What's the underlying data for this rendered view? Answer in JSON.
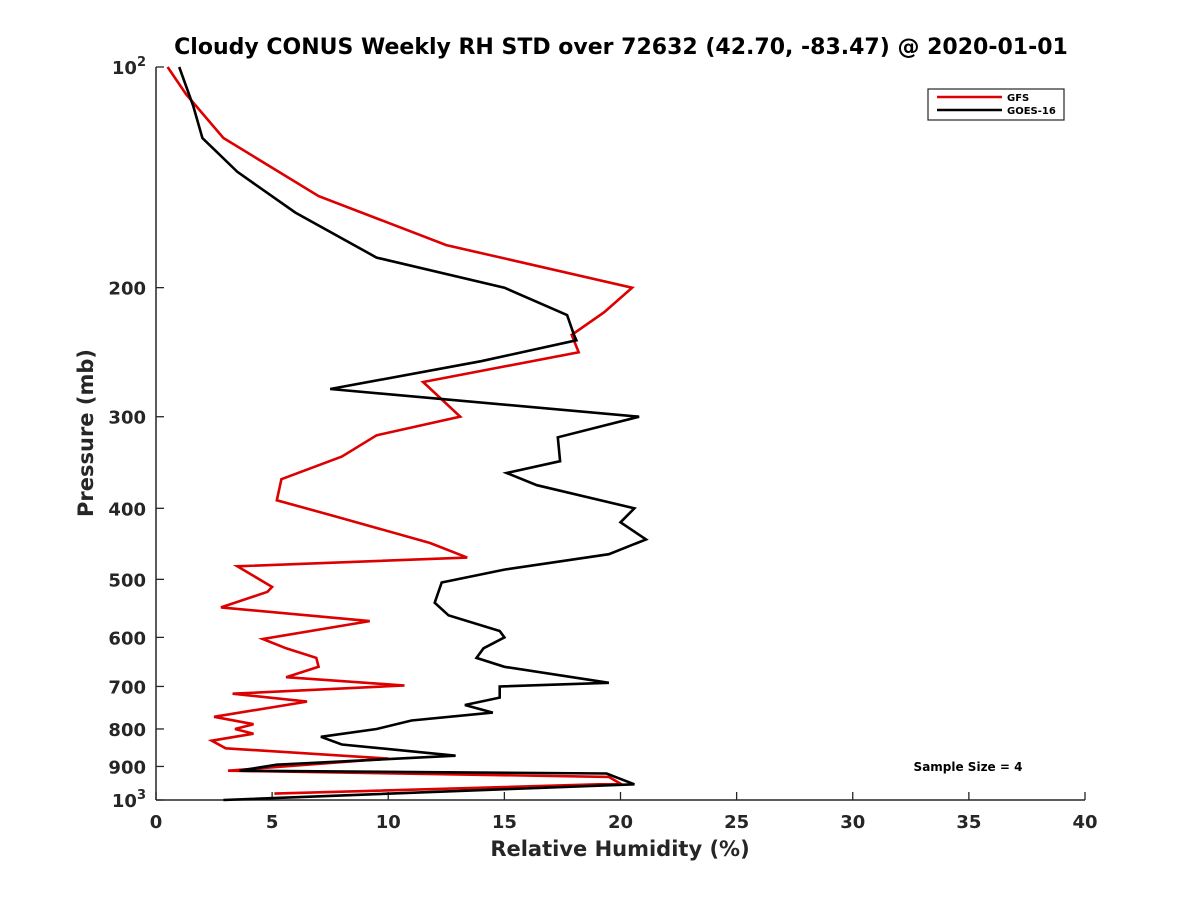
{
  "chart_data": {
    "type": "line",
    "title": "Cloudy CONUS Weekly RH STD over 72632 (42.70, -83.47) @ 2020-01-01",
    "xlabel": "Relative Humidity (%)",
    "ylabel": "Pressure (mb)",
    "xlim": [
      0,
      40
    ],
    "ylim": [
      100,
      1000
    ],
    "yscale": "log",
    "y_reversed": true,
    "grid": false,
    "legend_position": "top-right",
    "x_ticks": [
      "0",
      "5",
      "10",
      "15",
      "20",
      "25",
      "30",
      "35",
      "40"
    ],
    "y_ticks": [
      {
        "value": 100,
        "base": "10",
        "exp": "2"
      },
      {
        "value": 200,
        "label": "200"
      },
      {
        "value": 300,
        "label": "300"
      },
      {
        "value": 400,
        "label": "400"
      },
      {
        "value": 500,
        "label": "500"
      },
      {
        "value": 600,
        "label": "600"
      },
      {
        "value": 700,
        "label": "700"
      },
      {
        "value": 800,
        "label": "800"
      },
      {
        "value": 900,
        "label": "900"
      },
      {
        "value": 1000,
        "base": "10",
        "exp": "3"
      }
    ],
    "annotation": "Sample Size = 4",
    "series": [
      {
        "name": "GFS",
        "color": "#dd0000",
        "points": [
          [
            0.5,
            100
          ],
          [
            1.3,
            109
          ],
          [
            2.9,
            125
          ],
          [
            7.0,
            150
          ],
          [
            12.5,
            175
          ],
          [
            20.5,
            200
          ],
          [
            19.3,
            216
          ],
          [
            17.9,
            232
          ],
          [
            18.2,
            245
          ],
          [
            11.5,
            269
          ],
          [
            13.1,
            300
          ],
          [
            9.5,
            318
          ],
          [
            8.0,
            340
          ],
          [
            5.4,
            365
          ],
          [
            5.2,
            390
          ],
          [
            7.7,
            410
          ],
          [
            11.8,
            446
          ],
          [
            13.4,
            467
          ],
          [
            3.5,
            480
          ],
          [
            5.0,
            512
          ],
          [
            4.8,
            520
          ],
          [
            2.8,
            546
          ],
          [
            9.2,
            570
          ],
          [
            4.6,
            603
          ],
          [
            5.6,
            621
          ],
          [
            6.9,
            640
          ],
          [
            7.0,
            658
          ],
          [
            5.6,
            680
          ],
          [
            10.7,
            698
          ],
          [
            3.3,
            716
          ],
          [
            6.5,
            734
          ],
          [
            2.5,
            770
          ],
          [
            4.2,
            788
          ],
          [
            3.4,
            800
          ],
          [
            4.2,
            812
          ],
          [
            2.4,
            830
          ],
          [
            3.0,
            850
          ],
          [
            10.0,
            878
          ],
          [
            3.1,
            912
          ],
          [
            19.5,
            930
          ],
          [
            20.0,
            950
          ],
          [
            5.1,
            980
          ]
        ]
      },
      {
        "name": "GOES-16",
        "color": "#000000",
        "points": [
          [
            1.0,
            100
          ],
          [
            1.6,
            113
          ],
          [
            2.0,
            125
          ],
          [
            3.5,
            139
          ],
          [
            6.0,
            158
          ],
          [
            9.5,
            182
          ],
          [
            15.0,
            200
          ],
          [
            17.7,
            218
          ],
          [
            18.0,
            232
          ],
          [
            18.1,
            236
          ],
          [
            14.0,
            252
          ],
          [
            7.5,
            275
          ],
          [
            20.8,
            300
          ],
          [
            17.3,
            320
          ],
          [
            17.4,
            345
          ],
          [
            15.1,
            358
          ],
          [
            16.4,
            372
          ],
          [
            20.6,
            400
          ],
          [
            20.0,
            418
          ],
          [
            21.1,
            441
          ],
          [
            19.5,
            462
          ],
          [
            15.0,
            485
          ],
          [
            12.3,
            505
          ],
          [
            12.0,
            538
          ],
          [
            12.6,
            560
          ],
          [
            14.8,
            588
          ],
          [
            15.0,
            600
          ],
          [
            14.1,
            621
          ],
          [
            13.8,
            640
          ],
          [
            15.0,
            658
          ],
          [
            19.5,
            692
          ],
          [
            14.8,
            700
          ],
          [
            14.8,
            725
          ],
          [
            13.3,
            742
          ],
          [
            14.5,
            760
          ],
          [
            11.0,
            779
          ],
          [
            9.5,
            800
          ],
          [
            7.1,
            820
          ],
          [
            8.0,
            840
          ],
          [
            12.9,
            870
          ],
          [
            5.2,
            895
          ],
          [
            3.6,
            912
          ],
          [
            19.4,
            920
          ],
          [
            20.6,
            952
          ],
          [
            2.9,
            1000
          ]
        ]
      }
    ]
  }
}
